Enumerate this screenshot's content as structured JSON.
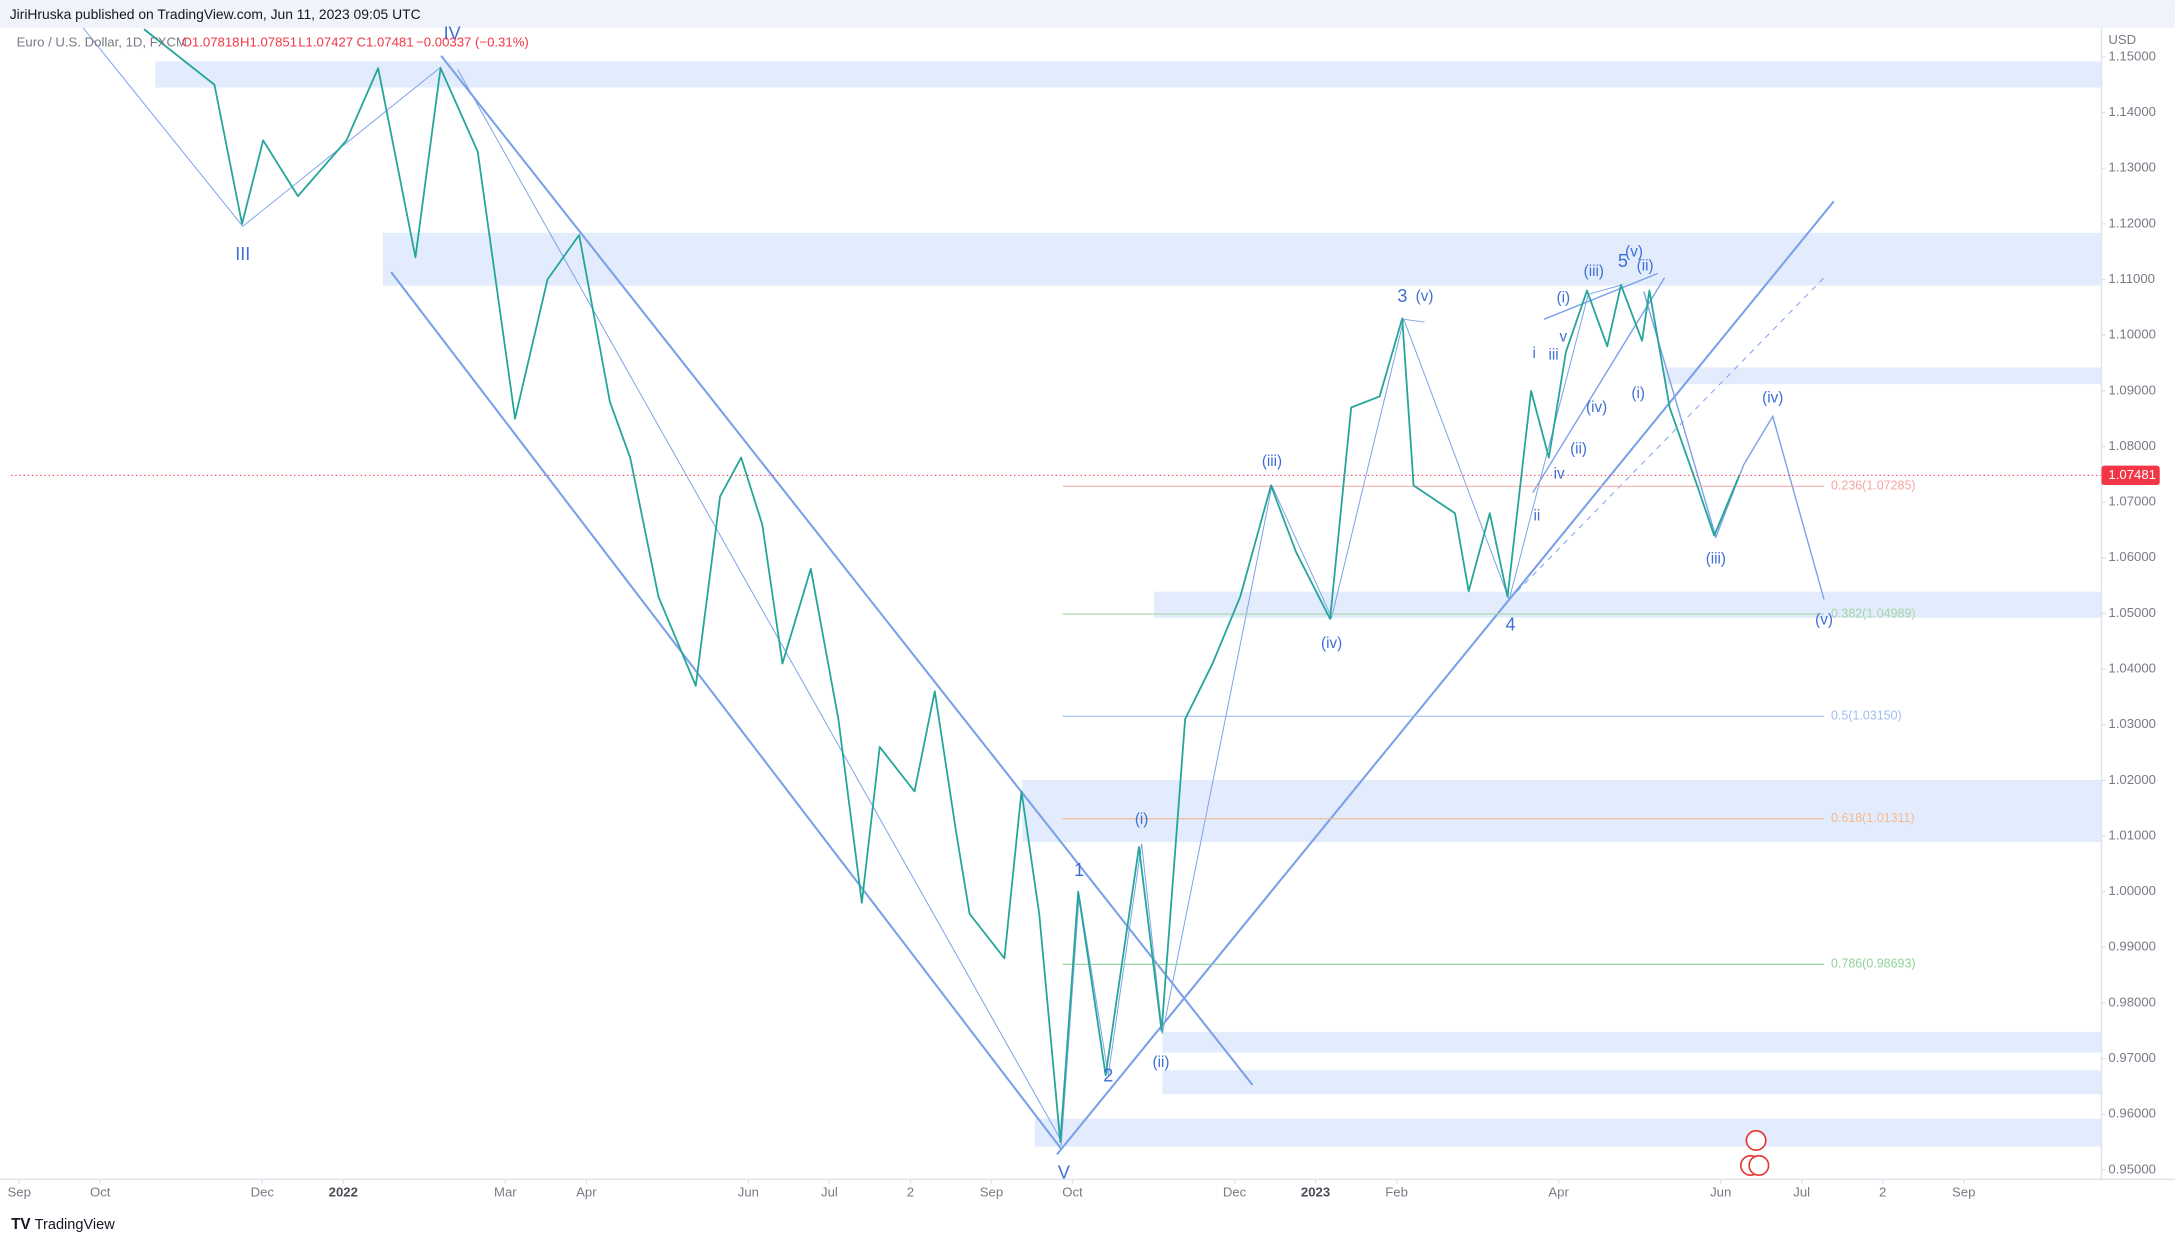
{
  "header": {
    "publisher": "JiriHruska published on TradingView.com, Jun 11, 2023 09:05 UTC"
  },
  "footer": {
    "brand": "TradingView"
  },
  "chart_data": {
    "type": "line",
    "symbol": "Euro / U.S. Dollar, 1D, FXCM",
    "ohlc": [
      "O1.07818",
      "H1.07851",
      "L1.07427",
      "C1.07481",
      "−0.00337 (−0.31%)"
    ],
    "currency": "USD",
    "color": "#26a69a",
    "x": [
      1.54,
      2.41,
      2.75,
      3.01,
      3.44,
      4.04,
      4.43,
      4.89,
      5.2,
      5.66,
      6.12,
      6.52,
      6.91,
      7.29,
      7.54,
      7.89,
      8.35,
      8.65,
      8.91,
      9.17,
      9.42,
      9.77,
      10.11,
      10.4,
      10.62,
      11.05,
      11.3,
      11.56,
      11.73,
      12.16,
      12.37,
      12.59,
      12.85,
      13.07,
      13.41,
      13.82,
      14.1,
      14.39,
      14.73,
      15.07,
      15.45,
      15.76,
      16.18,
      16.44,
      16.79,
      17.07,
      17.21,
      17.72,
      17.89,
      18.15,
      18.37,
      18.66,
      18.88,
      19.09,
      19.35,
      19.6,
      19.77,
      20.03,
      20.12,
      20.37,
      20.71,
      20.92,
      21.23
    ],
    "values": [
      1.155,
      1.145,
      1.12,
      1.135,
      1.125,
      1.135,
      1.148,
      1.114,
      1.148,
      1.133,
      1.085,
      1.11,
      1.118,
      1.088,
      1.078,
      1.053,
      1.037,
      1.071,
      1.078,
      1.066,
      1.041,
      1.058,
      1.031,
      0.998,
      1.026,
      1.018,
      1.036,
      1.011,
      0.996,
      0.988,
      1.018,
      0.996,
      0.955,
      1.0,
      0.967,
      1.008,
      0.975,
      1.031,
      1.041,
      1.053,
      1.073,
      1.061,
      1.049,
      1.087,
      1.089,
      1.103,
      1.073,
      1.068,
      1.054,
      1.068,
      1.053,
      1.09,
      1.078,
      1.097,
      1.108,
      1.098,
      1.109,
      1.099,
      1.108,
      1.087,
      1.073,
      1.064,
      1.07481
    ],
    "last_price": {
      "value": 1.07481,
      "label": "1.07481",
      "color": "#f23645"
    },
    "fib_levels": [
      {
        "value": 1.07285,
        "label": "0.236(1.07285)",
        "color": "#f4a6a3"
      },
      {
        "value": 1.04989,
        "label": "0.382(1.04989)",
        "color": "#a5d6a7"
      },
      {
        "value": 1.0315,
        "label": "0.5(1.03150)",
        "color": "#9fbdf0"
      },
      {
        "value": 1.01311,
        "label": "0.618(1.01311)",
        "color": "#f5b98e"
      },
      {
        "value": 0.98693,
        "label": "0.786(0.98693)",
        "color": "#8fd19a"
      }
    ],
    "zones": [
      [
        1.1492,
        1.1445
      ],
      [
        1.1184,
        1.1089
      ],
      [
        1.0942,
        1.0912
      ],
      [
        1.0539,
        1.0492
      ],
      [
        1.0201,
        1.0089
      ],
      [
        0.9748,
        0.9711
      ],
      [
        0.9679,
        0.9636
      ],
      [
        0.9592,
        0.9542
      ]
    ],
    "zone_color": "#e3ecfc",
    "wave_labels": [
      "III",
      "IV",
      "V",
      "1",
      "2",
      "(i)",
      "(ii)",
      "(iii)",
      "(iv)",
      "3",
      "(v)",
      "4",
      "i",
      "ii",
      "iii",
      "iv",
      "v",
      "(i)",
      "(ii)",
      "(iii)",
      "(iv)",
      "5",
      "(v)",
      "(ii)",
      "(i)",
      "(iii)",
      "(iv)",
      "(v)"
    ],
    "xlim": [
      -0.1,
      25.7
    ],
    "ylim": [
      0.9483,
      1.1552
    ],
    "xticks": [
      {
        "value": 0,
        "label": "Sep"
      },
      {
        "value": 1,
        "label": "Oct"
      },
      {
        "value": 3,
        "label": "Dec"
      },
      {
        "value": 4,
        "label": "2022"
      },
      {
        "value": 6,
        "label": "Mar"
      },
      {
        "value": 7,
        "label": "Apr"
      },
      {
        "value": 9,
        "label": "Jun"
      },
      {
        "value": 10,
        "label": "Jul"
      },
      {
        "value": 11,
        "label": "2"
      },
      {
        "value": 12,
        "label": "Sep"
      },
      {
        "value": 13,
        "label": "Oct"
      },
      {
        "value": 15,
        "label": "Dec"
      },
      {
        "value": 16,
        "label": "2023"
      },
      {
        "value": 17,
        "label": "Feb"
      },
      {
        "value": 19,
        "label": "Apr"
      },
      {
        "value": 21,
        "label": "Jun"
      },
      {
        "value": 22,
        "label": "Jul"
      },
      {
        "value": 23,
        "label": "2"
      },
      {
        "value": 24,
        "label": "Sep"
      }
    ],
    "yticks": [
      {
        "value": 0.95,
        "label": "0.95000"
      },
      {
        "value": 0.96,
        "label": "0.96000"
      },
      {
        "value": 0.97,
        "label": "0.97000"
      },
      {
        "value": 0.98,
        "label": "0.98000"
      },
      {
        "value": 0.99,
        "label": "0.99000"
      },
      {
        "value": 1.0,
        "label": "1.00000"
      },
      {
        "value": 1.01,
        "label": "1.01000"
      },
      {
        "value": 1.02,
        "label": "1.02000"
      },
      {
        "value": 1.03,
        "label": "1.03000"
      },
      {
        "value": 1.04,
        "label": "1.04000"
      },
      {
        "value": 1.05,
        "label": "1.05000"
      },
      {
        "value": 1.06,
        "label": "1.06000"
      },
      {
        "value": 1.07,
        "label": "1.07000"
      },
      {
        "value": 1.08,
        "label": "1.08000"
      },
      {
        "value": 1.09,
        "label": "1.09000"
      },
      {
        "value": 1.1,
        "label": "1.10000"
      },
      {
        "value": 1.11,
        "label": "1.11000"
      },
      {
        "value": 1.12,
        "label": "1.12000"
      },
      {
        "value": 1.13,
        "label": "1.13000"
      },
      {
        "value": 1.14,
        "label": "1.14000"
      },
      {
        "value": 1.15,
        "label": "1.15000"
      }
    ],
    "grid": false
  }
}
